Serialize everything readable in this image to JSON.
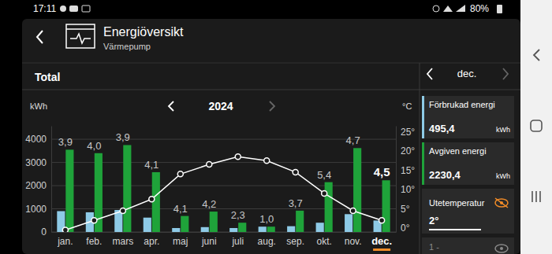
{
  "status_bar": {
    "time": "17:11",
    "battery": "80%"
  },
  "header": {
    "title": "Energiöversikt",
    "subtitle": "Värmepump"
  },
  "tab": "Total",
  "period_nav": {
    "year": "2024"
  },
  "panel": {
    "values": [
      "495,4",
      "2230,4",
      "2°"
    ],
    "unit": "kWh",
    "extra": "1 -"
  },
  "chart_data": {
    "type": "bar",
    "y_label": "kWh",
    "y2_label": "°C",
    "categories": [
      "jan.",
      "feb.",
      "mars",
      "apr.",
      "maj",
      "juni",
      "juli",
      "aug.",
      "sep.",
      "okt.",
      "nov.",
      "dec."
    ],
    "series": [
      {
        "name": "Förbrukad energi",
        "color": "#8ecae6",
        "values": [
          900,
          850,
          950,
          620,
          170,
          210,
          170,
          230,
          250,
          400,
          770,
          495.4
        ]
      },
      {
        "name": "Avgiven energi",
        "color": "#1fa33a",
        "values": [
          3550,
          3400,
          3750,
          2580,
          690,
          880,
          400,
          230,
          920,
          2150,
          3620,
          2230.4
        ]
      },
      {
        "name": "Utetemperatur",
        "type": "line",
        "axis": "y2",
        "color": "#ffffff",
        "marker": "circle",
        "values": [
          -0.5,
          2,
          4.5,
          7.5,
          14,
          16.5,
          18.5,
          17.5,
          14.5,
          9,
          4.5,
          2
        ]
      }
    ],
    "annotations": [
      "3,9",
      "4,0",
      "3,9",
      "4,1",
      "4,1",
      "4,2",
      "2,3",
      "1,0",
      "3,7",
      "5,4",
      "4,7",
      "4,5"
    ],
    "ylim": [
      0,
      4580
    ],
    "yticks": [
      0,
      1000,
      2000,
      3000,
      4000
    ],
    "y2lim": [
      -1,
      26.5
    ],
    "y2ticks": [
      {
        "value": 0,
        "label": "0°"
      },
      {
        "value": 5,
        "label": "5°"
      },
      {
        "value": 10,
        "label": "10°"
      },
      {
        "value": 15,
        "label": "15°"
      },
      {
        "value": 20,
        "label": "20°"
      },
      {
        "value": 25,
        "label": "25°"
      }
    ],
    "grid": true
  }
}
